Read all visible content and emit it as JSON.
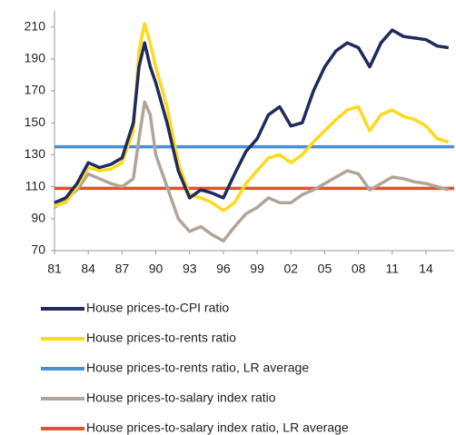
{
  "chart_data": {
    "type": "line",
    "x": [
      1981,
      1982,
      1983,
      1984,
      1985,
      1986,
      1987,
      1988,
      1988.5,
      1989,
      1989.5,
      1990,
      1991,
      1992,
      1993,
      1994,
      1995,
      1996,
      1997,
      1998,
      1999,
      2000,
      2001,
      2002,
      2003,
      2004,
      2005,
      2006,
      2007,
      2008,
      2009,
      2010,
      2011,
      2012,
      2013,
      2014,
      2015,
      2016
    ],
    "series": [
      {
        "name": "House prices-to-CPI ratio",
        "color": "#1f2a5e",
        "values": [
          100,
          103,
          112,
          125,
          122,
          124,
          128,
          150,
          185,
          200,
          185,
          175,
          150,
          120,
          103,
          108,
          106,
          103,
          118,
          132,
          140,
          155,
          160,
          148,
          150,
          170,
          185,
          195,
          200,
          197,
          185,
          200,
          208,
          204,
          203,
          202,
          198,
          197
        ]
      },
      {
        "name": "House prices-to-rents ratio",
        "color": "#ffd91a",
        "values": [
          98,
          100,
          110,
          122,
          120,
          121,
          125,
          145,
          195,
          212,
          200,
          185,
          160,
          125,
          105,
          103,
          100,
          95,
          100,
          112,
          120,
          128,
          130,
          125,
          130,
          138,
          145,
          152,
          158,
          160,
          145,
          155,
          158,
          154,
          152,
          148,
          140,
          138
        ]
      },
      {
        "name": "House prices-to-rents ratio, LR average",
        "color": "#4a90d9",
        "x": [
          1981,
          2016.5
        ],
        "values": [
          135,
          135
        ]
      },
      {
        "name": "House prices-to-salary index ratio",
        "color": "#b0a59a",
        "values": [
          97,
          102,
          108,
          118,
          115,
          112,
          110,
          115,
          140,
          163,
          155,
          130,
          110,
          90,
          82,
          85,
          80,
          76,
          85,
          93,
          97,
          103,
          100,
          100,
          105,
          108,
          112,
          116,
          120,
          118,
          108,
          112,
          116,
          115,
          113,
          112,
          110,
          108
        ]
      },
      {
        "name": "House prices-to-salary index ratio, LR average",
        "color": "#e4502a",
        "x": [
          1981,
          2016.5
        ],
        "values": [
          109,
          109
        ]
      }
    ],
    "xlim": [
      1981,
      2016.5
    ],
    "xticks": [
      {
        "value": 1981,
        "label": "81"
      },
      {
        "value": 1984,
        "label": "84"
      },
      {
        "value": 1987,
        "label": "87"
      },
      {
        "value": 1990,
        "label": "90"
      },
      {
        "value": 1993,
        "label": "93"
      },
      {
        "value": 1996,
        "label": "96"
      },
      {
        "value": 1999,
        "label": "99"
      },
      {
        "value": 2002,
        "label": "02"
      },
      {
        "value": 2005,
        "label": "05"
      },
      {
        "value": 2008,
        "label": "08"
      },
      {
        "value": 2011,
        "label": "11"
      },
      {
        "value": 2014,
        "label": "14"
      }
    ],
    "ylim": [
      70,
      220
    ],
    "yticks": [
      70,
      90,
      110,
      130,
      150,
      170,
      190,
      210
    ],
    "legend": "bottom"
  }
}
